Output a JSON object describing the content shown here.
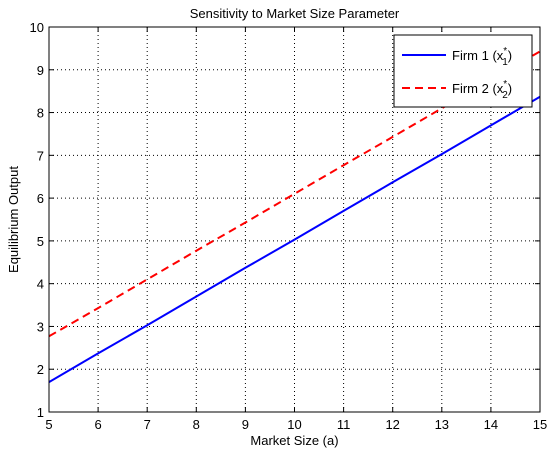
{
  "chart_data": {
    "type": "line",
    "title": "Sensitivity to Market Size Parameter",
    "xlabel": "Market Size (a)",
    "ylabel": "Equilibrium Output",
    "xlim": [
      5,
      15
    ],
    "ylim": [
      1,
      10
    ],
    "xticks": [
      5,
      6,
      7,
      8,
      9,
      10,
      11,
      12,
      13,
      14,
      15
    ],
    "yticks": [
      1,
      2,
      3,
      4,
      5,
      6,
      7,
      8,
      9,
      10
    ],
    "grid": true,
    "legend_position": "top-right",
    "x": [
      5,
      6,
      7,
      8,
      9,
      10,
      11,
      12,
      13,
      14,
      15
    ],
    "series": [
      {
        "name": "Firm 1 (x1*)",
        "legend_base": "Firm 1 (x",
        "legend_sub": "1",
        "legend_sup": "*",
        "legend_close": ")",
        "color": "#0000ff",
        "style": "solid",
        "values": [
          1.7,
          2.37,
          3.03,
          3.7,
          4.37,
          5.03,
          5.7,
          6.37,
          7.03,
          7.7,
          8.37
        ]
      },
      {
        "name": "Firm 2 (x2*)",
        "legend_base": "Firm 2 (x",
        "legend_sub": "2",
        "legend_sup": "*",
        "legend_close": ")",
        "color": "#ff0000",
        "style": "dashed",
        "values": [
          2.77,
          3.43,
          4.1,
          4.77,
          5.43,
          6.1,
          6.77,
          7.43,
          8.1,
          8.77,
          9.43
        ]
      }
    ]
  }
}
